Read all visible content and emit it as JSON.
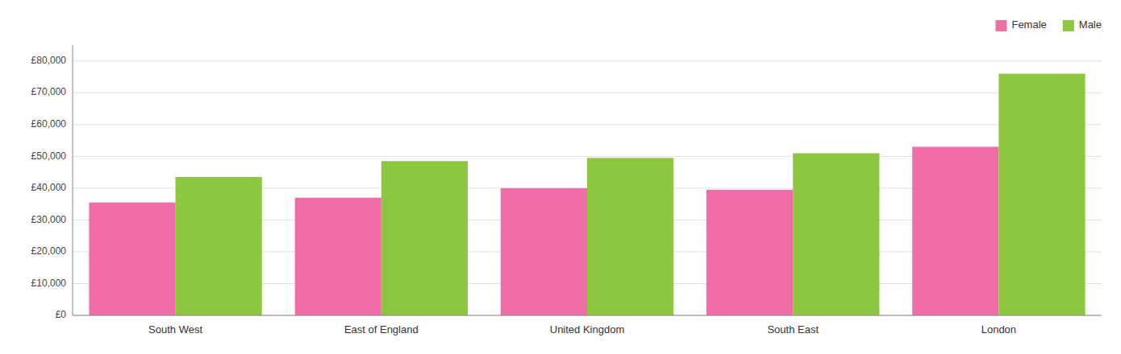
{
  "chart_data": {
    "type": "bar",
    "categories": [
      "South West",
      "East of England",
      "United Kingdom",
      "South East",
      "London"
    ],
    "series": [
      {
        "name": "Female",
        "color": "#f06daa",
        "values": [
          35500,
          37000,
          40000,
          39500,
          53000
        ]
      },
      {
        "name": "Male",
        "color": "#8dc63f",
        "values": [
          43500,
          48500,
          49500,
          51000,
          76000
        ]
      }
    ],
    "ylim": [
      0,
      85000
    ],
    "yticks": [
      {
        "value": 0,
        "label": "£0"
      },
      {
        "value": 10000,
        "label": "£10,000"
      },
      {
        "value": 20000,
        "label": "£20,000"
      },
      {
        "value": 30000,
        "label": "£30,000"
      },
      {
        "value": 40000,
        "label": "£40,000"
      },
      {
        "value": 50000,
        "label": "£50,000"
      },
      {
        "value": 60000,
        "label": "£60,000"
      },
      {
        "value": 70000,
        "label": "£70,000"
      },
      {
        "value": 80000,
        "label": "£80,000"
      }
    ],
    "grid": true,
    "legend": "upper right"
  }
}
